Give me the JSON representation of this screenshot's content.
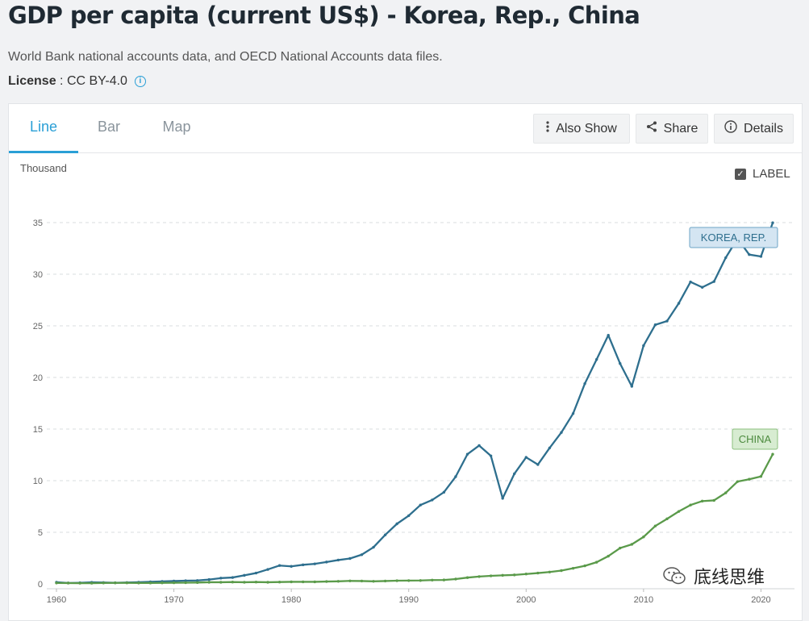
{
  "header": {
    "title": "GDP per capita (current US$) - Korea, Rep., China",
    "subtitle": "World Bank national accounts data, and OECD National Accounts data files.",
    "license_label": "License",
    "license_sep": " : ",
    "license_value": "CC BY-4.0"
  },
  "tabs": [
    {
      "label": "Line",
      "active": true
    },
    {
      "label": "Bar",
      "active": false
    },
    {
      "label": "Map",
      "active": false
    }
  ],
  "buttons": {
    "also_show": "Also Show",
    "share": "Share",
    "details": "Details"
  },
  "chart_controls": {
    "unit_label": "Thousand",
    "label_toggle": "LABEL",
    "label_checked": true
  },
  "watermark": "底线思维",
  "chart_data": {
    "type": "line",
    "title": "GDP per capita (current US$) - Korea, Rep., China",
    "ylabel": "Thousand",
    "xlabel": "",
    "ylim": [
      0,
      35
    ],
    "yticks": [
      0,
      5,
      10,
      15,
      20,
      25,
      30,
      35
    ],
    "xticks": [
      1960,
      1970,
      1980,
      1990,
      2000,
      2010,
      2020
    ],
    "grid": true,
    "x": [
      1960,
      1961,
      1962,
      1963,
      1964,
      1965,
      1966,
      1967,
      1968,
      1969,
      1970,
      1971,
      1972,
      1973,
      1974,
      1975,
      1976,
      1977,
      1978,
      1979,
      1980,
      1981,
      1982,
      1983,
      1984,
      1985,
      1986,
      1987,
      1988,
      1989,
      1990,
      1991,
      1992,
      1993,
      1994,
      1995,
      1996,
      1997,
      1998,
      1999,
      2000,
      2001,
      2002,
      2003,
      2004,
      2005,
      2006,
      2007,
      2008,
      2009,
      2010,
      2011,
      2012,
      2013,
      2014,
      2015,
      2016,
      2017,
      2018,
      2019,
      2020,
      2021
    ],
    "series": [
      {
        "name": "KOREA, REP.",
        "color": "#2e6f8e",
        "values": [
          0.16,
          0.09,
          0.11,
          0.15,
          0.13,
          0.11,
          0.13,
          0.16,
          0.2,
          0.24,
          0.28,
          0.31,
          0.33,
          0.42,
          0.56,
          0.62,
          0.83,
          1.05,
          1.4,
          1.78,
          1.7,
          1.85,
          1.94,
          2.12,
          2.31,
          2.46,
          2.83,
          3.55,
          4.75,
          5.82,
          6.61,
          7.64,
          8.13,
          8.88,
          10.39,
          12.56,
          13.4,
          12.4,
          8.29,
          10.67,
          12.26,
          11.56,
          13.17,
          14.67,
          16.5,
          19.4,
          21.74,
          24.09,
          21.35,
          19.14,
          23.08,
          25.1,
          25.46,
          27.18,
          29.25,
          28.73,
          29.29,
          31.6,
          33.45,
          31.9,
          31.72,
          34.98
        ]
      },
      {
        "name": "CHINA",
        "color": "#5a9a4a",
        "values": [
          0.09,
          0.08,
          0.07,
          0.07,
          0.09,
          0.1,
          0.1,
          0.09,
          0.09,
          0.1,
          0.11,
          0.12,
          0.13,
          0.16,
          0.16,
          0.18,
          0.16,
          0.18,
          0.16,
          0.18,
          0.2,
          0.2,
          0.2,
          0.23,
          0.25,
          0.29,
          0.28,
          0.25,
          0.28,
          0.31,
          0.32,
          0.33,
          0.37,
          0.38,
          0.47,
          0.61,
          0.71,
          0.78,
          0.83,
          0.87,
          0.96,
          1.05,
          1.15,
          1.29,
          1.51,
          1.75,
          2.1,
          2.69,
          3.47,
          3.83,
          4.55,
          5.61,
          6.3,
          7.02,
          7.64,
          8.02,
          8.09,
          8.82,
          9.91,
          10.14,
          10.41,
          12.56
        ]
      }
    ]
  }
}
